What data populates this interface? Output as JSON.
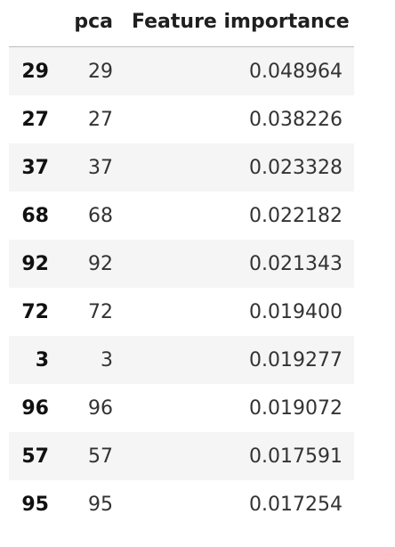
{
  "table": {
    "header": {
      "index_label": "",
      "columns": [
        "pca",
        "Feature importance"
      ]
    },
    "rows": [
      {
        "index": "29",
        "pca": "29",
        "importance": "0.048964"
      },
      {
        "index": "27",
        "pca": "27",
        "importance": "0.038226"
      },
      {
        "index": "37",
        "pca": "37",
        "importance": "0.023328"
      },
      {
        "index": "68",
        "pca": "68",
        "importance": "0.022182"
      },
      {
        "index": "92",
        "pca": "92",
        "importance": "0.021343"
      },
      {
        "index": "72",
        "pca": "72",
        "importance": "0.019400"
      },
      {
        "index": "3",
        "pca": "3",
        "importance": "0.019277"
      },
      {
        "index": "96",
        "pca": "96",
        "importance": "0.019072"
      },
      {
        "index": "57",
        "pca": "57",
        "importance": "0.017591"
      },
      {
        "index": "95",
        "pca": "95",
        "importance": "0.017254"
      }
    ],
    "colors": {
      "stripe": "#f5f5f5",
      "header_rule": "#bdbdbd",
      "text": "#1f1f1f"
    }
  }
}
